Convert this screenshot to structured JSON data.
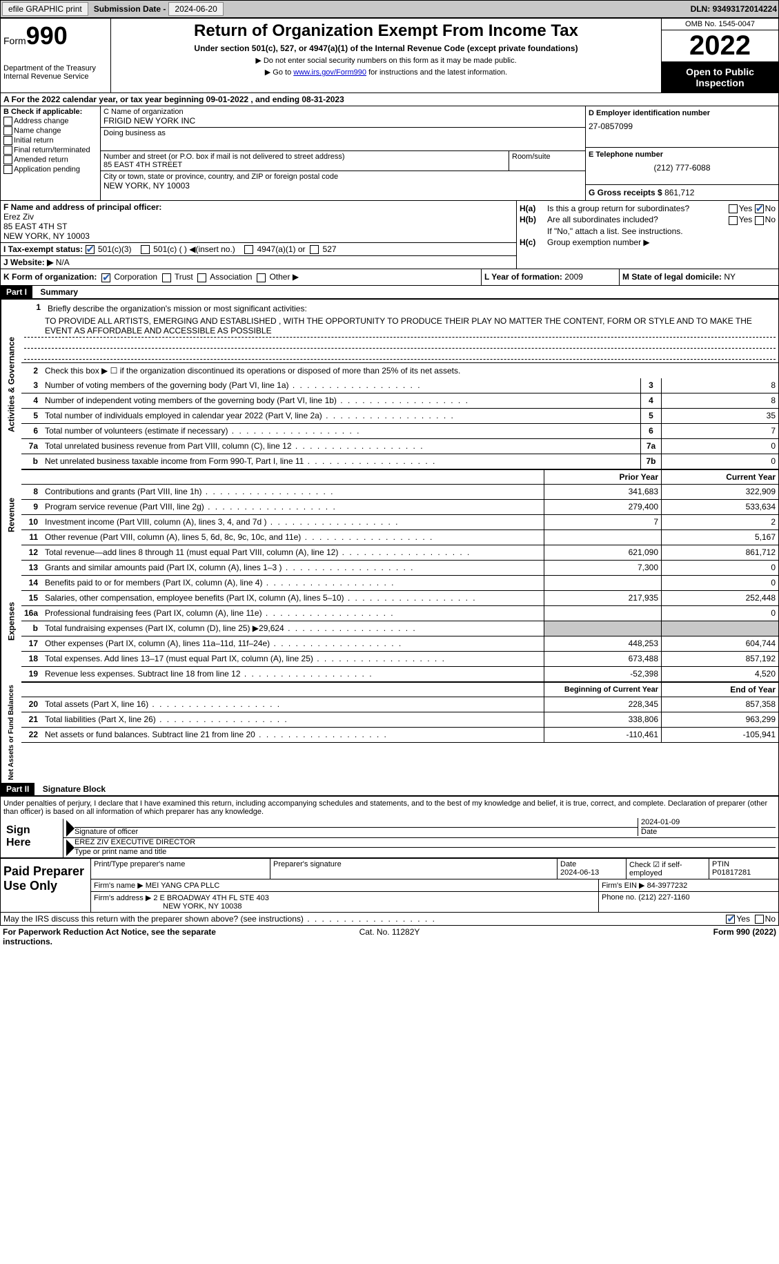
{
  "topbar": {
    "efile_btn": "efile GRAPHIC print",
    "submission_lbl": "Submission Date - ",
    "submission_date": "2024-06-20",
    "dln_lbl": "DLN: ",
    "dln": "93493172014224"
  },
  "header": {
    "form_prefix": "Form",
    "form_number": "990",
    "dept": "Department of the Treasury\nInternal Revenue Service",
    "title": "Return of Organization Exempt From Income Tax",
    "subtitle": "Under section 501(c), 527, or 4947(a)(1) of the Internal Revenue Code (except private foundations)",
    "instr1": "▶ Do not enter social security numbers on this form as it may be made public.",
    "instr2_pre": "▶ Go to ",
    "instr2_link": "www.irs.gov/Form990",
    "instr2_post": " for instructions and the latest information.",
    "omb": "OMB No. 1545-0047",
    "year": "2022",
    "open": "Open to Public Inspection"
  },
  "row_a": "A For the 2022 calendar year, or tax year beginning 09-01-2022    , and ending 08-31-2023",
  "section_b": {
    "label": "B Check if applicable:",
    "opts": [
      "Address change",
      "Name change",
      "Initial return",
      "Final return/terminated",
      "Amended return",
      "Application pending"
    ]
  },
  "section_c": {
    "name_lbl": "C Name of organization",
    "name": "FRIGID NEW YORK INC",
    "dba_lbl": "Doing business as",
    "street_lbl": "Number and street (or P.O. box if mail is not delivered to street address)",
    "street": "85 EAST 4TH STREET",
    "room_lbl": "Room/suite",
    "city_lbl": "City or town, state or province, country, and ZIP or foreign postal code",
    "city": "NEW YORK, NY  10003"
  },
  "section_d": {
    "lbl": "D Employer identification number",
    "val": "27-0857099"
  },
  "section_e": {
    "lbl": "E Telephone number",
    "val": "(212) 777-6088"
  },
  "section_g": {
    "lbl": "G Gross receipts $ ",
    "val": "861,712"
  },
  "section_f": {
    "lbl": "F Name and address of principal officer:",
    "name": "Erez Ziv",
    "addr": "85 EAST 4TH ST\nNEW YORK, NY  10003"
  },
  "section_h": {
    "ha_lbl": "H(a)",
    "ha_txt": "Is this a group return for subordinates?",
    "hb_lbl": "H(b)",
    "hb_txt": "Are all subordinates included?",
    "hb_note": "If \"No,\" attach a list. See instructions.",
    "hc_lbl": "H(c)",
    "hc_txt": "Group exemption number ▶"
  },
  "section_i": {
    "lbl": "I   Tax-exempt status:",
    "opts": [
      "501(c)(3)",
      "501(c) (  ) ◀(insert no.)",
      "4947(a)(1) or",
      "527"
    ]
  },
  "section_j": {
    "lbl": "J   Website: ▶",
    "val": "  N/A"
  },
  "section_k": {
    "lbl": "K Form of organization:",
    "opts": [
      "Corporation",
      "Trust",
      "Association",
      "Other ▶"
    ]
  },
  "section_l": {
    "lbl": "L Year of formation: ",
    "val": "2009"
  },
  "section_m": {
    "lbl": "M State of legal domicile: ",
    "val": "NY"
  },
  "part1": {
    "hdr": "Part I",
    "title": "Summary",
    "side_activities": "Activities & Governance",
    "side_revenue": "Revenue",
    "side_expenses": "Expenses",
    "side_netassets": "Net Assets or Fund Balances",
    "line1_lbl": "Briefly describe the organization's mission or most significant activities:",
    "line1_txt": "TO PROVIDE ALL ARTISTS, EMERGING AND ESTABLISHED , WITH THE OPPORTUNITY TO PRODUCE THEIR PLAY NO MATTER THE CONTENT, FORM OR STYLE AND TO MAKE THE EVENT AS AFFORDABLE AND ACCESSIBLE AS POSSIBLE",
    "line2": "Check this box ▶ ☐ if the organization discontinued its operations or disposed of more than 25% of its net assets.",
    "lines_ag": [
      {
        "n": "3",
        "t": "Number of voting members of the governing body (Part VI, line 1a)",
        "box": "3",
        "v": "8"
      },
      {
        "n": "4",
        "t": "Number of independent voting members of the governing body (Part VI, line 1b)",
        "box": "4",
        "v": "8"
      },
      {
        "n": "5",
        "t": "Total number of individuals employed in calendar year 2022 (Part V, line 2a)",
        "box": "5",
        "v": "35"
      },
      {
        "n": "6",
        "t": "Total number of volunteers (estimate if necessary)",
        "box": "6",
        "v": "7"
      },
      {
        "n": "7a",
        "t": "Total unrelated business revenue from Part VIII, column (C), line 12",
        "box": "7a",
        "v": "0"
      },
      {
        "n": "b",
        "t": "Net unrelated business taxable income from Form 990-T, Part I, line 11",
        "box": "7b",
        "v": "0"
      }
    ],
    "col_prior": "Prior Year",
    "col_current": "Current Year",
    "lines_rev": [
      {
        "n": "8",
        "t": "Contributions and grants (Part VIII, line 1h)",
        "p": "341,683",
        "c": "322,909"
      },
      {
        "n": "9",
        "t": "Program service revenue (Part VIII, line 2g)",
        "p": "279,400",
        "c": "533,634"
      },
      {
        "n": "10",
        "t": "Investment income (Part VIII, column (A), lines 3, 4, and 7d )",
        "p": "7",
        "c": "2"
      },
      {
        "n": "11",
        "t": "Other revenue (Part VIII, column (A), lines 5, 6d, 8c, 9c, 10c, and 11e)",
        "p": "",
        "c": "5,167"
      },
      {
        "n": "12",
        "t": "Total revenue—add lines 8 through 11 (must equal Part VIII, column (A), line 12)",
        "p": "621,090",
        "c": "861,712"
      }
    ],
    "lines_exp": [
      {
        "n": "13",
        "t": "Grants and similar amounts paid (Part IX, column (A), lines 1–3 )",
        "p": "7,300",
        "c": "0"
      },
      {
        "n": "14",
        "t": "Benefits paid to or for members (Part IX, column (A), line 4)",
        "p": "",
        "c": "0"
      },
      {
        "n": "15",
        "t": "Salaries, other compensation, employee benefits (Part IX, column (A), lines 5–10)",
        "p": "217,935",
        "c": "252,448"
      },
      {
        "n": "16a",
        "t": "Professional fundraising fees (Part IX, column (A), line 11e)",
        "p": "",
        "c": "0"
      },
      {
        "n": "b",
        "t": "Total fundraising expenses (Part IX, column (D), line 25) ▶29,624",
        "p": "SHADED",
        "c": "SHADED"
      },
      {
        "n": "17",
        "t": "Other expenses (Part IX, column (A), lines 11a–11d, 11f–24e)",
        "p": "448,253",
        "c": "604,744"
      },
      {
        "n": "18",
        "t": "Total expenses. Add lines 13–17 (must equal Part IX, column (A), line 25)",
        "p": "673,488",
        "c": "857,192"
      },
      {
        "n": "19",
        "t": "Revenue less expenses. Subtract line 18 from line 12",
        "p": "-52,398",
        "c": "4,520"
      }
    ],
    "col_begin": "Beginning of Current Year",
    "col_end": "End of Year",
    "lines_net": [
      {
        "n": "20",
        "t": "Total assets (Part X, line 16)",
        "p": "228,345",
        "c": "857,358"
      },
      {
        "n": "21",
        "t": "Total liabilities (Part X, line 26)",
        "p": "338,806",
        "c": "963,299"
      },
      {
        "n": "22",
        "t": "Net assets or fund balances. Subtract line 21 from line 20",
        "p": "-110,461",
        "c": "-105,941"
      }
    ]
  },
  "part2": {
    "hdr": "Part II",
    "title": "Signature Block",
    "decl": "Under penalties of perjury, I declare that I have examined this return, including accompanying schedules and statements, and to the best of my knowledge and belief, it is true, correct, and complete. Declaration of preparer (other than officer) is based on all information of which preparer has any knowledge.",
    "sign_here": "Sign Here",
    "sig_officer": "Signature of officer",
    "sig_date": "2024-01-09",
    "date_lbl": "Date",
    "officer_name": "EREZ ZIV  EXECUTIVE DIRECTOR",
    "type_name": "Type or print name and title",
    "paid_prep": "Paid Preparer Use Only",
    "prep_name_lbl": "Print/Type preparer's name",
    "prep_sig_lbl": "Preparer's signature",
    "prep_date_lbl": "Date",
    "prep_date": "2024-06-13",
    "check_self": "Check ☑ if self-employed",
    "ptin_lbl": "PTIN",
    "ptin": "P01817281",
    "firm_name_lbl": "Firm's name    ▶ ",
    "firm_name": "MEI YANG CPA PLLC",
    "firm_ein_lbl": "Firm's EIN ▶ ",
    "firm_ein": "84-3977232",
    "firm_addr_lbl": "Firm's address ▶ ",
    "firm_addr": "2 E BROADWAY 4TH FL STE 403",
    "firm_city": "NEW YORK, NY  10038",
    "phone_lbl": "Phone no. ",
    "phone": "(212) 227-1160",
    "discuss": "May the IRS discuss this return with the preparer shown above? (see instructions)"
  },
  "footer": {
    "pra": "For Paperwork Reduction Act Notice, see the separate instructions.",
    "cat": "Cat. No. 11282Y",
    "form": "Form 990 (2022)"
  }
}
